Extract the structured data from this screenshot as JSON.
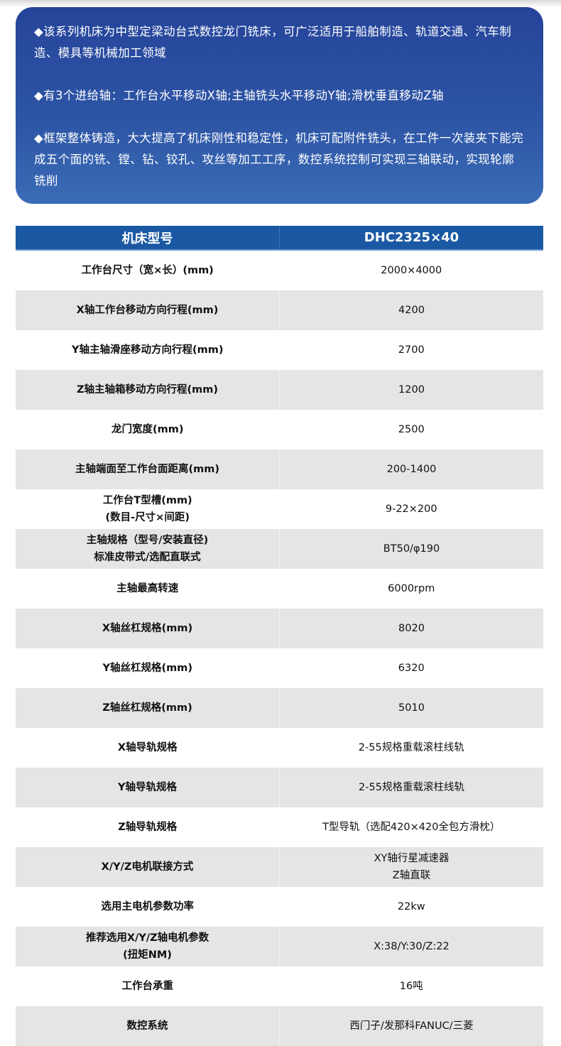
{
  "intro": {
    "paragraphs": [
      "◆该系列机床为中型定梁动台式数控龙门铣床，可广泛适用于船舶制造、轨道交通、汽车制造、模具等机械加工领域",
      "◆有3个进给轴：工作台水平移动X轴;主轴铣头水平移动Y轴;滑枕垂直移动Z轴",
      "◆框架整体铸造，大大提高了机床刚性和稳定性，机床可配附件铣头，在工件一次装夹下能完成五个面的铣、镗、钻、铰孔、攻丝等加工工序，数控系统控制可实现三轴联动，实现轮廓铣削"
    ]
  },
  "table": {
    "header": [
      "机床型号",
      "DHC2325×40"
    ],
    "rows": [
      {
        "label": [
          "工作台尺寸（宽×长）(mm)"
        ],
        "value": [
          "2000×4000"
        ]
      },
      {
        "label": [
          "X轴工作台移动方向行程(mm)"
        ],
        "value": [
          "4200"
        ]
      },
      {
        "label": [
          "Y轴主轴滑座移动方向行程(mm)"
        ],
        "value": [
          "2700"
        ]
      },
      {
        "label": [
          "Z轴主轴箱移动方向行程(mm)"
        ],
        "value": [
          "1200"
        ]
      },
      {
        "label": [
          "龙门宽度(mm)"
        ],
        "value": [
          "2500"
        ]
      },
      {
        "label": [
          "主轴端面至工作台面距离(mm)"
        ],
        "value": [
          "200-1400"
        ]
      },
      {
        "label": [
          "工作台T型槽(mm)",
          "(数目-尺寸×间距)"
        ],
        "value": [
          "9-22×200"
        ]
      },
      {
        "label": [
          "主轴规格（型号/安装直径)",
          "标准皮带式/选配直联式"
        ],
        "value": [
          "BT50/φ190"
        ]
      },
      {
        "label": [
          "主轴最高转速"
        ],
        "value": [
          "6000rpm"
        ]
      },
      {
        "label": [
          "X轴丝杠规格(mm)"
        ],
        "value": [
          "8020"
        ]
      },
      {
        "label": [
          "Y轴丝杠规格(mm)"
        ],
        "value": [
          "6320"
        ]
      },
      {
        "label": [
          "Z轴丝杠规格(mm)"
        ],
        "value": [
          "5010"
        ]
      },
      {
        "label": [
          "X轴导轨规格"
        ],
        "value": [
          "2-55规格重载滚柱线轨"
        ]
      },
      {
        "label": [
          "Y轴导轨规格"
        ],
        "value": [
          "2-55规格重载滚柱线轨"
        ]
      },
      {
        "label": [
          "Z轴导轨规格"
        ],
        "value": [
          "T型导轨（选配420×420全包方滑枕）"
        ]
      },
      {
        "label": [
          "X/Y/Z电机联接方式"
        ],
        "value": [
          "XY轴行星减速器",
          "Z轴直联"
        ]
      },
      {
        "label": [
          "选用主电机参数功率"
        ],
        "value": [
          "22kw"
        ]
      },
      {
        "label": [
          "推荐选用X/Y/Z轴电机参数",
          "(扭矩NM)"
        ],
        "value": [
          "X:38/Y:30/Z:22"
        ]
      },
      {
        "label": [
          "工作台承重"
        ],
        "value": [
          "16吨"
        ]
      },
      {
        "label": [
          "数控系统"
        ],
        "value": [
          "西门子/发那科FANUC/三菱"
        ]
      }
    ]
  },
  "colors": {
    "intro_top": "#25449a",
    "intro_bottom": "#3a6cb6",
    "header_bg": "#1b58a3",
    "stripe": "#e6e5e6"
  }
}
